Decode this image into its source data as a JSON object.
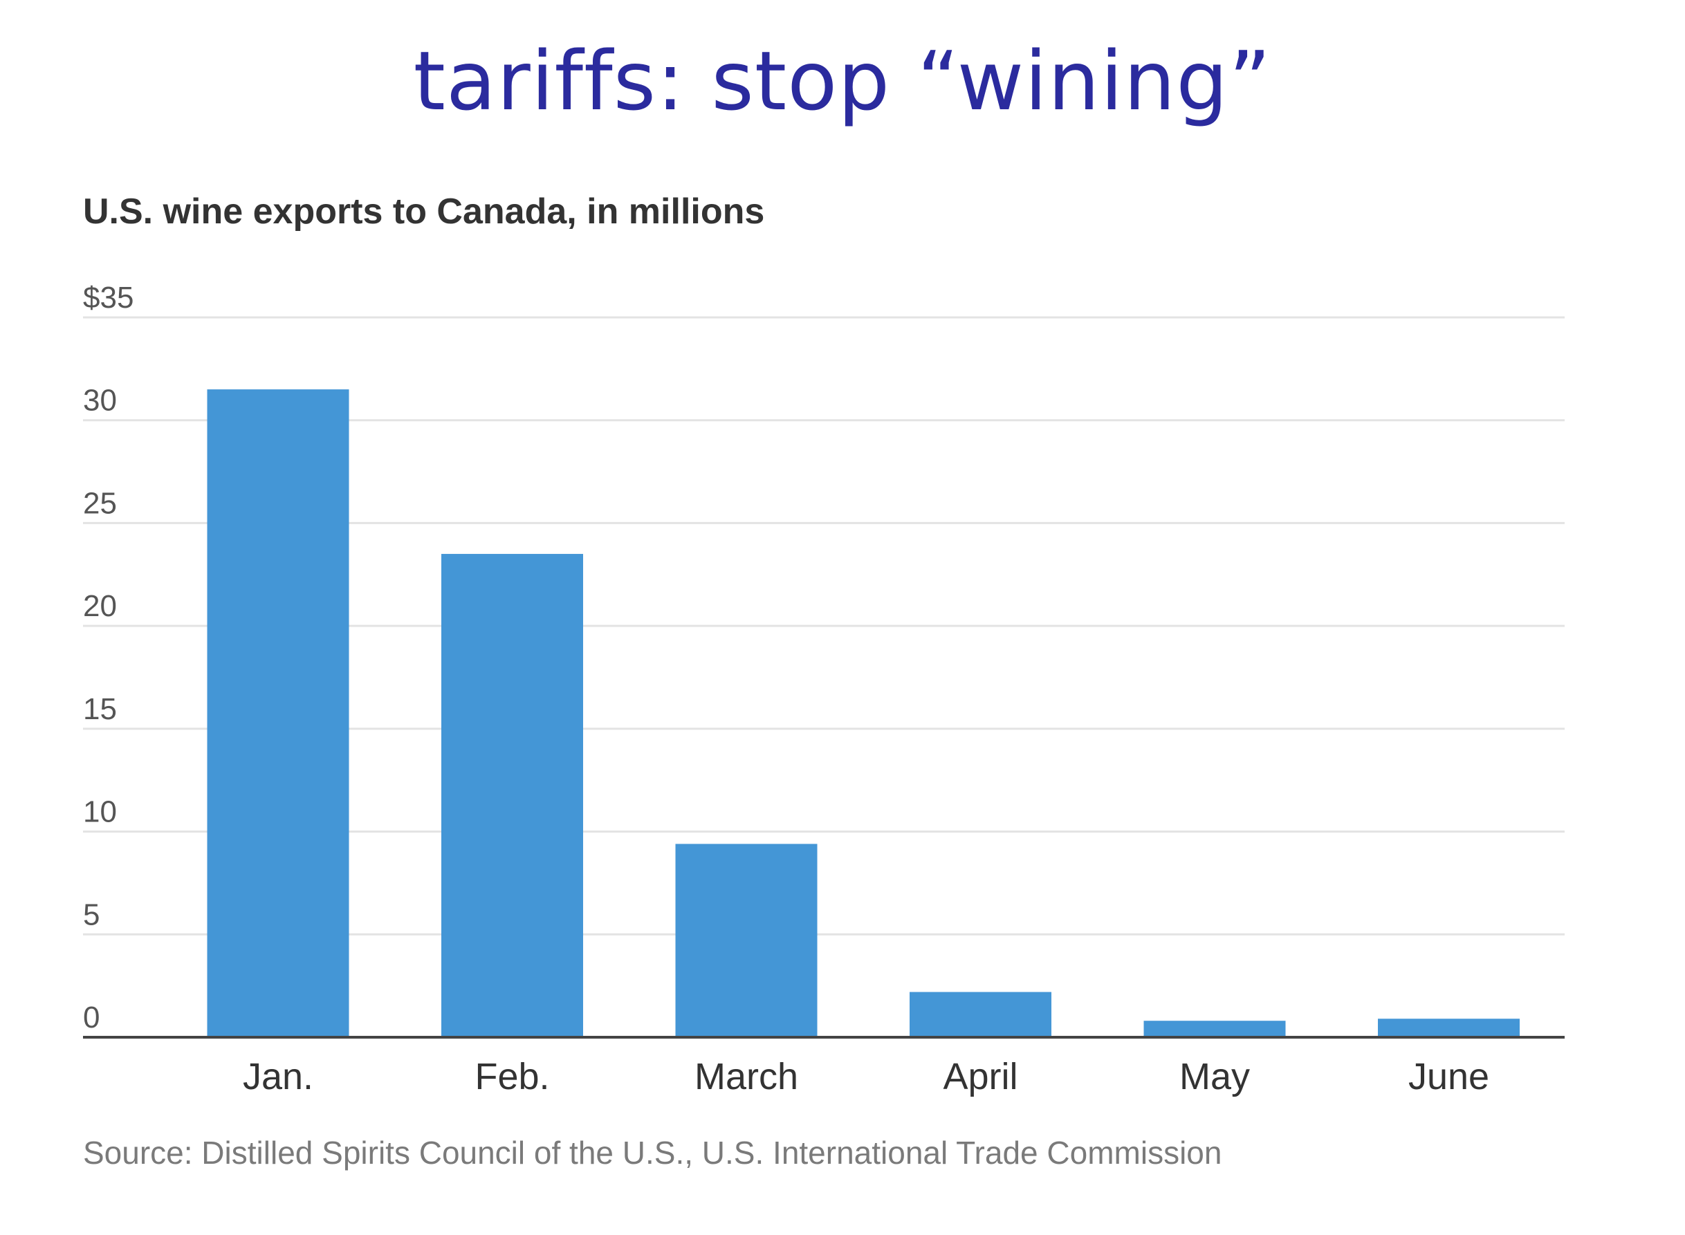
{
  "slide": {
    "title": "tariffs:  stop “wining”"
  },
  "chart_data": {
    "type": "bar",
    "title": "U.S. wine exports to Canada, in millions",
    "categories": [
      "Jan.",
      "Feb.",
      "March",
      "April",
      "May",
      "June"
    ],
    "values": [
      31.5,
      23.5,
      9.4,
      2.2,
      0.8,
      0.9
    ],
    "ylim": [
      0,
      35
    ],
    "yticks": [
      0,
      5,
      10,
      15,
      20,
      25,
      30,
      35
    ],
    "ytick_labels": [
      "0",
      "5",
      "10",
      "15",
      "20",
      "25",
      "30",
      "$35"
    ],
    "xlabel": "",
    "ylabel": "",
    "grid": true,
    "bar_color": "#4496d6",
    "source": "Source: Distilled Spirits Council of the U.S., U.S. International Trade Commission"
  }
}
